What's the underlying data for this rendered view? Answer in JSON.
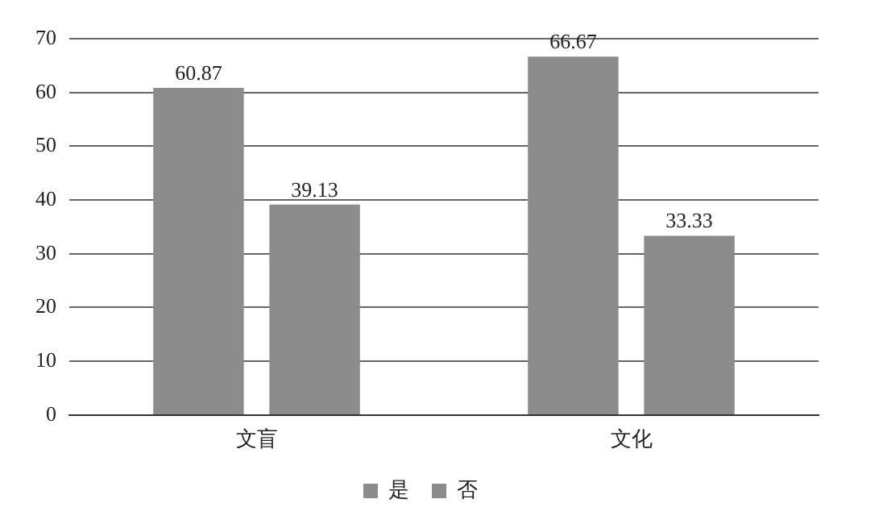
{
  "chart_data": {
    "type": "bar",
    "categories": [
      "文盲",
      "文化"
    ],
    "series": [
      {
        "name": "是",
        "color": "#8c8c8c",
        "values": [
          60.87,
          66.67
        ]
      },
      {
        "name": "否",
        "color": "#8c8c8c",
        "values": [
          39.13,
          33.33
        ]
      }
    ],
    "ylim": [
      0,
      70
    ],
    "yticks": [
      0,
      10,
      20,
      30,
      40,
      50,
      60,
      70
    ],
    "grid": "y",
    "legend": "bottom",
    "data_labels": true
  }
}
